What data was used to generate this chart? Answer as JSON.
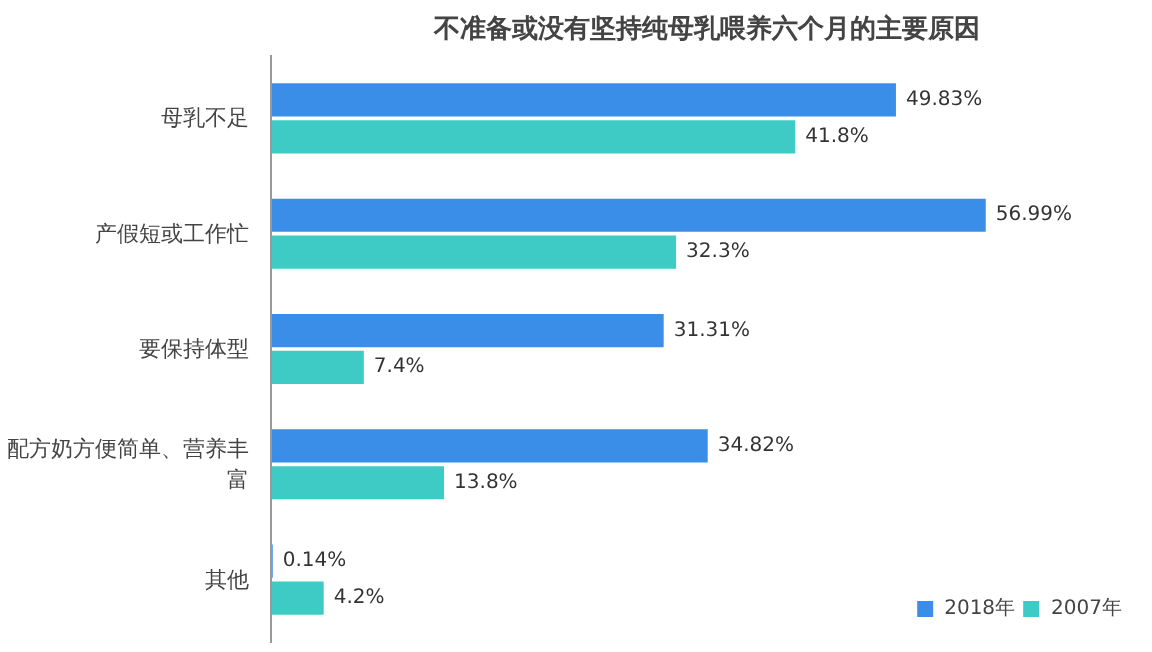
{
  "chart_data": {
    "type": "bar",
    "orientation": "horizontal",
    "title": "不准备或没有坚持纯母乳喂养六个月的主要原因",
    "categories": [
      "母乳不足",
      "产假短或工作忙",
      "要保持体型",
      "配方奶方便简单、营养丰富",
      "其他"
    ],
    "series": [
      {
        "name": "2018年",
        "color": "#3b8ee8",
        "values": [
          49.83,
          56.99,
          31.31,
          34.82,
          0.14
        ],
        "value_labels": [
          "49.83%",
          "56.99%",
          "31.31%",
          "34.82%",
          "0.14%"
        ]
      },
      {
        "name": "2007年",
        "color": "#3ecbc6",
        "values": [
          41.8,
          32.3,
          7.4,
          13.8,
          4.2
        ],
        "value_labels": [
          "41.8%",
          "32.3%",
          "7.4%",
          "13.8%",
          "4.2%"
        ]
      }
    ],
    "legend": "bottom right",
    "grid": false
  }
}
